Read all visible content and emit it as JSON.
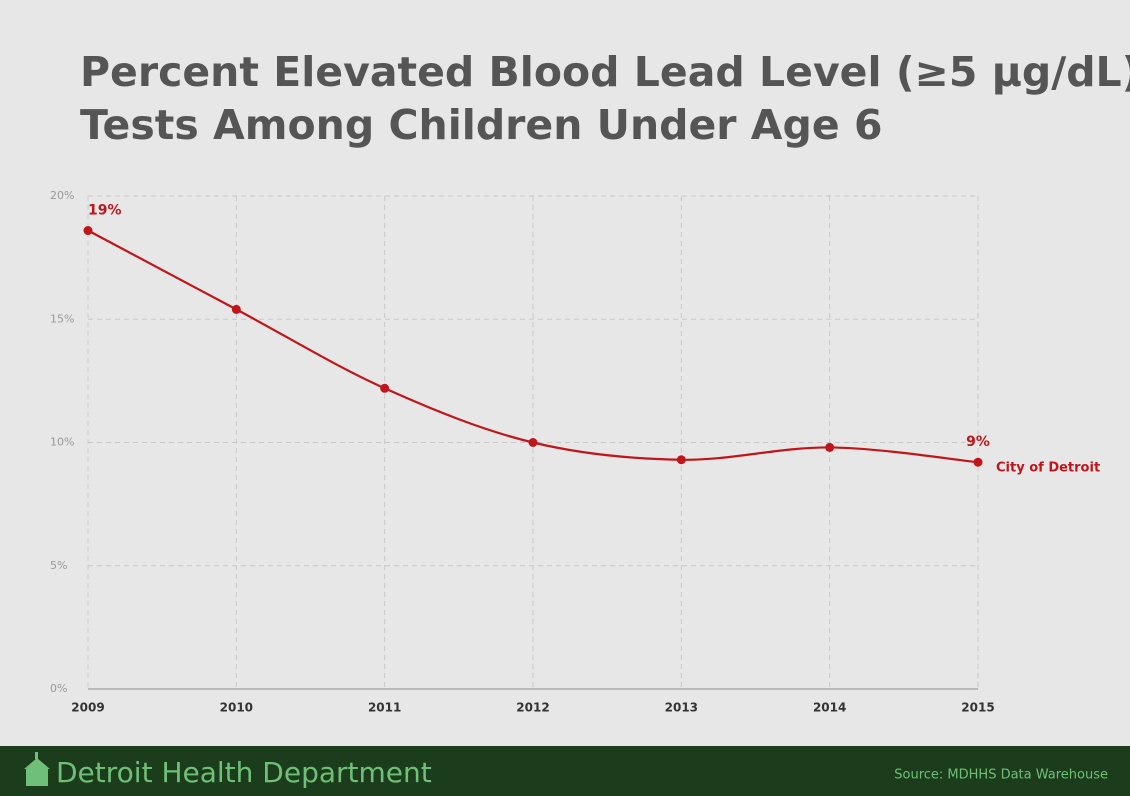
{
  "chart_data": {
    "type": "line",
    "title": [
      "Percent Elevated Blood Lead Level (≥5 µg/dL)",
      "Tests Among Children Under Age 6"
    ],
    "categories": [
      "2009",
      "2010",
      "2011",
      "2012",
      "2013",
      "2014",
      "2015"
    ],
    "series": [
      {
        "name": "City of Detroit",
        "color": "#c0161b",
        "values": [
          18.6,
          15.4,
          12.2,
          10.0,
          9.3,
          9.8,
          9.2
        ],
        "value_labels": [
          "19%",
          null,
          null,
          null,
          null,
          null,
          "9%"
        ]
      }
    ],
    "ylim": [
      0,
      20
    ],
    "yticks": [
      {
        "value": 0,
        "label": "0%"
      },
      {
        "value": 5,
        "label": "5%"
      },
      {
        "value": 10,
        "label": "10%"
      },
      {
        "value": 15,
        "label": "15%"
      },
      {
        "value": 20,
        "label": "20%"
      }
    ],
    "grid": true
  },
  "footer": {
    "organization": "Detroit Health Department",
    "source": "Source:  MDHHS Data Warehouse"
  }
}
